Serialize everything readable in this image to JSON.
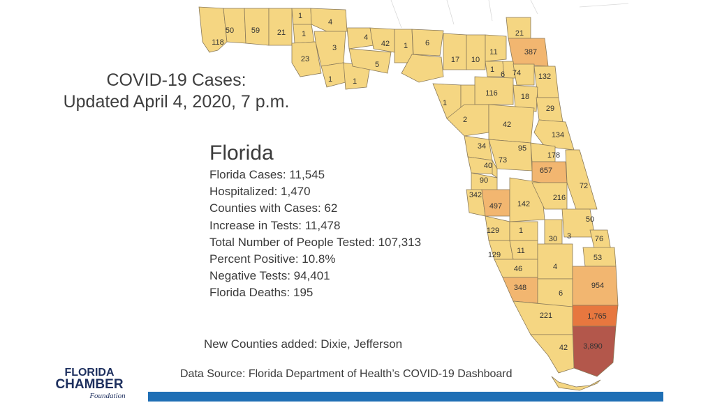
{
  "title": {
    "line1": "COVID-19 Cases:",
    "line2": "Updated April 4, 2020, 7 p.m."
  },
  "stats": {
    "heading": "Florida",
    "rows": [
      "Florida Cases:  11,545",
      "Hospitalized:  1,470",
      "Counties with Cases:  62",
      "Increase in Tests:  11,478",
      "Total Number of People Tested:  107,313",
      "Percent Positive:  10.8%",
      "Negative Tests:  94,401",
      "Florida Deaths:  195"
    ]
  },
  "new_counties": "New Counties added:  Dixie,  Jefferson",
  "source": "Data Source:  Florida Department of Health’s COVID-19 Dashboard",
  "logo": {
    "line1": "FLORIDA",
    "line2": "CHAMBER",
    "line3": "Foundation"
  },
  "colors": {
    "low": "#f5d682",
    "medium": "#f2b670",
    "high": "#ee9a55",
    "higher": "#e7773f",
    "highest": "#b3574b",
    "bar": "#1f6fb5"
  },
  "map": {
    "county_labels": [
      "118",
      "50",
      "59",
      "21",
      "1",
      "4",
      "1",
      "23",
      "3",
      "1",
      "1",
      "4",
      "42",
      "1",
      "6",
      "5",
      "17",
      "10",
      "11",
      "21",
      "387",
      "1",
      "6",
      "74",
      "132",
      "116",
      "18",
      "1",
      "29",
      "2",
      "42",
      "134",
      "34",
      "95",
      "178",
      "40",
      "73",
      "657",
      "90",
      "72",
      "342",
      "497",
      "142",
      "216",
      "50",
      "129",
      "1",
      "30",
      "3",
      "76",
      "129",
      "11",
      "53",
      "46",
      "4",
      "348",
      "954",
      "6",
      "221",
      "1,765",
      "42",
      "3,890"
    ]
  }
}
